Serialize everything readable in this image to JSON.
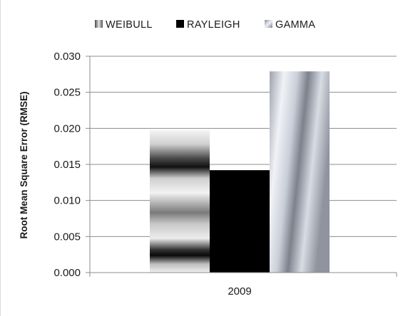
{
  "chart_data": {
    "type": "bar",
    "title": "",
    "xlabel": "",
    "ylabel": "Root Mean Square Error (RMSE)",
    "categories": [
      "2009"
    ],
    "series": [
      {
        "name": "WEIBULL",
        "values": [
          0.0198
        ],
        "fill": "weibull"
      },
      {
        "name": "RAYLEIGH",
        "values": [
          0.0142
        ],
        "fill": "rayleigh"
      },
      {
        "name": "GAMMA",
        "values": [
          0.0279
        ],
        "fill": "gamma"
      }
    ],
    "ylim": [
      0,
      0.03
    ],
    "yticks": [
      "0.000",
      "0.005",
      "0.010",
      "0.015",
      "0.020",
      "0.025",
      "0.030"
    ],
    "grid": true,
    "legend_position": "top"
  },
  "colors": {
    "rayleigh": "#000000",
    "gridline": "#8c8c8c",
    "axis": "#8c8c8c",
    "weibull_light": "#f2f2f2",
    "weibull_dark": "#1a1a1a",
    "gamma_light": "#e6e9f0",
    "gamma_dark": "#6b6f7a"
  }
}
